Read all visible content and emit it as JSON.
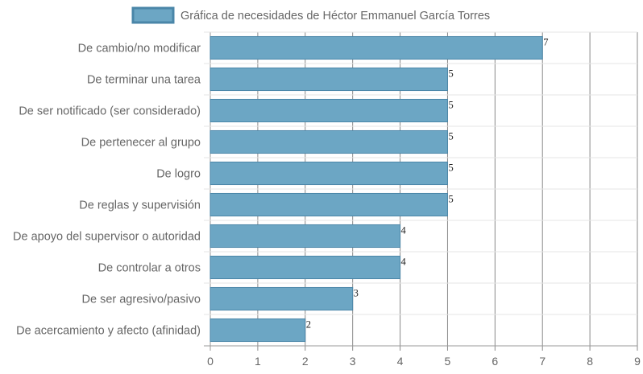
{
  "chart_data": {
    "type": "bar",
    "orientation": "horizontal",
    "title": "",
    "xlabel": "",
    "ylabel": "",
    "legend_position": "top",
    "grid": true,
    "xlim": [
      0,
      9
    ],
    "x_ticks": [
      "0",
      "1",
      "2",
      "3",
      "4",
      "5",
      "6",
      "7",
      "8",
      "9"
    ],
    "categories": [
      "De cambio/no modificar",
      "De terminar una tarea",
      "De ser notificado (ser considerado)",
      "De pertenecer al grupo",
      "De logro",
      "De reglas y supervisión",
      "De apoyo del supervisor o autoridad",
      "De controlar a otros",
      "De ser agresivo/pasivo",
      "De acercamiento y afecto (afinidad)"
    ],
    "series": [
      {
        "name": "Gráfica de necesidades de Héctor Emmanuel García Torres",
        "values": [
          7,
          5,
          5,
          5,
          5,
          5,
          4,
          4,
          3,
          2
        ],
        "color": "#6ca6c4",
        "border_color": "#4a86a8"
      }
    ],
    "data_labels": [
      "7",
      "5",
      "5",
      "5",
      "5",
      "5",
      "4",
      "4",
      "3",
      "2"
    ]
  }
}
